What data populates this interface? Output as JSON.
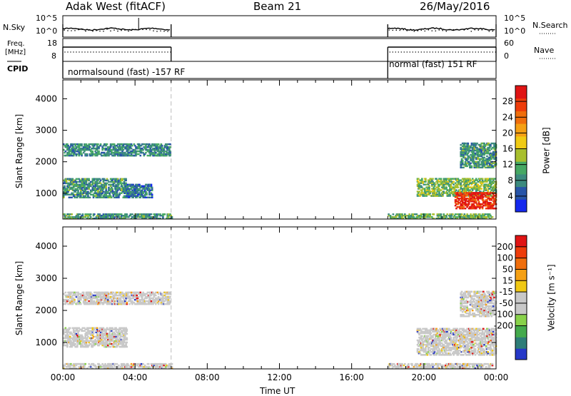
{
  "chart_data": [
    {
      "type": "line",
      "panel": "sky noise / search noise",
      "left_label": "N.Sky",
      "left_ticks": [
        "10^5",
        "10^0"
      ],
      "right_label": "N.Search",
      "right_ticks": [
        "10^5",
        "10^0"
      ],
      "header": {
        "left": "Adak West (fitACF)",
        "center": "Beam 21",
        "right": "26/May/2016"
      },
      "segments": [
        [
          0.0,
          6.0
        ],
        [
          18.0,
          24.0
        ]
      ]
    },
    {
      "type": "line",
      "panel": "frequency / nave",
      "left_label_top": "Freq.",
      "left_label_bottom": "[MHz]",
      "left_ticks": [
        "18",
        "8"
      ],
      "right_label": "Nave",
      "right_ticks": [
        "60",
        "0"
      ],
      "segments": [
        [
          0.0,
          6.0
        ],
        [
          18.0,
          24.0
        ]
      ]
    },
    {
      "type": "table",
      "panel": "CPID",
      "label": "CPID",
      "entries": [
        {
          "start": 0.0,
          "end": 6.0,
          "text": "normalsound (fast) -157 RF"
        },
        {
          "start": 18.0,
          "end": 24.0,
          "text": "normal (fast) 151 RF"
        }
      ]
    },
    {
      "type": "heatmap",
      "panel": "power",
      "ylabel": "Slant Range [km]",
      "ylim": [
        180,
        4600
      ],
      "yticks": [
        1000,
        2000,
        3000,
        4000
      ],
      "colorbar_label": "Power [dB]",
      "colorbar_range": [
        0,
        32
      ],
      "colorbar_ticks": [
        4,
        8,
        12,
        16,
        20,
        24,
        28
      ],
      "colorbar_colors": [
        "#1428ee",
        "#2855a8",
        "#3c8a7e",
        "#46a864",
        "#a8bf2e",
        "#f0cb14",
        "#f5a014",
        "#f06e0c",
        "#ee3c0a",
        "#e01414"
      ],
      "regions": [
        {
          "t0": 0.0,
          "t1": 5.9,
          "r0": 2180,
          "r1": 2560,
          "level": 2.0
        },
        {
          "t0": 0.0,
          "t1": 3.5,
          "r0": 850,
          "r1": 1450,
          "level": 2.3
        },
        {
          "t0": 0.0,
          "t1": 6.0,
          "r0": 180,
          "r1": 320,
          "level": 2.5
        },
        {
          "t0": 3.4,
          "t1": 4.9,
          "r0": 850,
          "r1": 1300,
          "level": 1.6
        },
        {
          "t0": 18.0,
          "t1": 23.8,
          "r0": 180,
          "r1": 320,
          "level": 3.0
        },
        {
          "t0": 19.6,
          "t1": 24.0,
          "r0": 900,
          "r1": 1450,
          "level": 3.4
        },
        {
          "t0": 21.7,
          "t1": 24.0,
          "r0": 500,
          "r1": 1000,
          "level": 8.5
        },
        {
          "t0": 22.0,
          "t1": 24.0,
          "r0": 1800,
          "r1": 2600,
          "level": 2.4
        }
      ]
    },
    {
      "type": "heatmap",
      "panel": "velocity",
      "ylabel": "Slant Range [km]",
      "ylim": [
        180,
        4600
      ],
      "yticks": [
        1000,
        2000,
        3000,
        4000
      ],
      "xlabel": "Time UT",
      "xlim": [
        0,
        24
      ],
      "xticks": [
        "00:00",
        "04:00",
        "08:00",
        "12:00",
        "16:00",
        "20:00",
        "00:00"
      ],
      "colorbar_label": "Velocity [m s⁻¹]",
      "colorbar_ticks": [
        "200",
        "100",
        "50",
        "15",
        "-15",
        "-50",
        "-100",
        "-200"
      ],
      "colorbar_colors": [
        "#2638c8",
        "#2e7d78",
        "#44aa4c",
        "#88d24a",
        "#c8c8c8",
        "#c8c8c8",
        "#f0c814",
        "#f5a014",
        "#f06e0c",
        "#ee3c0a",
        "#e01414"
      ],
      "regions": [
        {
          "t0": 0.0,
          "t1": 5.9,
          "r0": 2180,
          "r1": 2560,
          "level": 0
        },
        {
          "t0": 0.0,
          "t1": 3.5,
          "r0": 850,
          "r1": 1450,
          "level": 0
        },
        {
          "t0": 0.0,
          "t1": 6.0,
          "r0": 180,
          "r1": 320,
          "level": 0
        },
        {
          "t0": 18.0,
          "t1": 23.8,
          "r0": 180,
          "r1": 320,
          "level": 0
        },
        {
          "t0": 19.6,
          "t1": 24.0,
          "r0": 600,
          "r1": 1450,
          "level": 0
        },
        {
          "t0": 22.0,
          "t1": 24.0,
          "r0": 1800,
          "r1": 2600,
          "level": 0
        }
      ]
    }
  ]
}
